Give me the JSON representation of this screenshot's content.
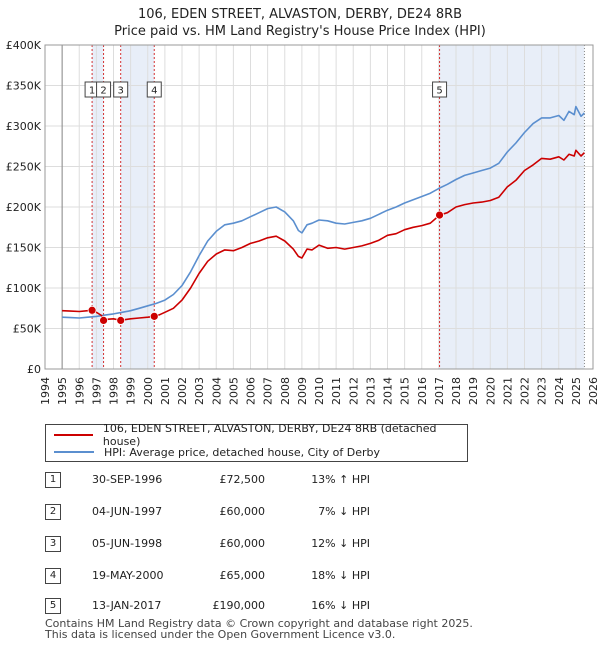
{
  "title": {
    "line1": "106, EDEN STREET, ALVASTON, DERBY, DE24 8RB",
    "line2": "Price paid vs. HM Land Registry's House Price Index (HPI)"
  },
  "chart_data": {
    "type": "line",
    "title": "106, EDEN STREET, ALVASTON, DERBY, DE24 8RB — Price paid vs. HM Land Registry's House Price Index (HPI)",
    "xlabel": "",
    "ylabel": "",
    "xlim": [
      1994,
      2026
    ],
    "ylim": [
      0,
      400000
    ],
    "grid": true,
    "x_ticks": [
      1994,
      1995,
      1996,
      1997,
      1998,
      1999,
      2000,
      2001,
      2002,
      2003,
      2004,
      2005,
      2006,
      2007,
      2008,
      2009,
      2010,
      2011,
      2012,
      2013,
      2014,
      2015,
      2016,
      2017,
      2018,
      2019,
      2020,
      2021,
      2022,
      2023,
      2024,
      2025,
      2026
    ],
    "y_ticks": [
      {
        "value": 0,
        "label": "£0"
      },
      {
        "value": 50000,
        "label": "£50K"
      },
      {
        "value": 100000,
        "label": "£100K"
      },
      {
        "value": 150000,
        "label": "£150K"
      },
      {
        "value": 200000,
        "label": "£200K"
      },
      {
        "value": 250000,
        "label": "£250K"
      },
      {
        "value": 300000,
        "label": "£300K"
      },
      {
        "value": 350000,
        "label": "£350K"
      },
      {
        "value": 400000,
        "label": "£400K"
      }
    ],
    "data_start": 1995,
    "data_end": 2025.5,
    "series": [
      {
        "name": "106, EDEN STREET, ALVASTON, DERBY, DE24 8RB (detached house)",
        "color": "#cc0000",
        "x": [
          1995,
          1995.5,
          1996,
          1996.5,
          1996.75,
          1997,
          1997.3,
          1997.42,
          1997.7,
          1998,
          1998.42,
          1998.7,
          1999,
          1999.5,
          2000,
          2000.38,
          2000.7,
          2001,
          2001.5,
          2002,
          2002.5,
          2003,
          2003.5,
          2004,
          2004.5,
          2005,
          2005.5,
          2006,
          2006.5,
          2007,
          2007.5,
          2008,
          2008.5,
          2008.8,
          2009,
          2009.3,
          2009.6,
          2010,
          2010.5,
          2011,
          2011.5,
          2012,
          2012.5,
          2013,
          2013.5,
          2014,
          2014.5,
          2015,
          2015.5,
          2016,
          2016.5,
          2017.04,
          2017.5,
          2018,
          2018.5,
          2019,
          2019.5,
          2020,
          2020.5,
          2021,
          2021.5,
          2022,
          2022.5,
          2023,
          2023.5,
          2024,
          2024.3,
          2024.6,
          2024.9,
          2025,
          2025.3,
          2025.5
        ],
        "values": [
          72000,
          71500,
          71000,
          72000,
          72500,
          70000,
          66000,
          60000,
          61500,
          62000,
          60000,
          61000,
          62000,
          63000,
          64000,
          65000,
          67000,
          70000,
          75000,
          85000,
          100000,
          118000,
          133000,
          142000,
          147000,
          146000,
          150000,
          155000,
          158000,
          162000,
          164000,
          158000,
          148000,
          139000,
          137000,
          148000,
          147000,
          153000,
          149000,
          150000,
          148000,
          150000,
          152000,
          155000,
          159000,
          165000,
          167000,
          172000,
          175000,
          177000,
          180000,
          190000,
          193000,
          200000,
          203000,
          205000,
          206000,
          208000,
          212000,
          225000,
          233000,
          245000,
          252000,
          260000,
          259000,
          262000,
          258000,
          265000,
          263000,
          270000,
          263000,
          267000
        ]
      },
      {
        "name": "HPI: Average price, detached house, City of Derby",
        "color": "#5b8fcf",
        "x": [
          1995,
          1995.5,
          1996,
          1996.5,
          1997,
          1997.5,
          1998,
          1998.5,
          1999,
          1999.5,
          2000,
          2000.5,
          2001,
          2001.5,
          2002,
          2002.5,
          2003,
          2003.5,
          2004,
          2004.5,
          2005,
          2005.5,
          2006,
          2006.5,
          2007,
          2007.5,
          2008,
          2008.5,
          2008.8,
          2009,
          2009.3,
          2009.6,
          2010,
          2010.5,
          2011,
          2011.5,
          2012,
          2012.5,
          2013,
          2013.5,
          2014,
          2014.5,
          2015,
          2015.5,
          2016,
          2016.5,
          2017,
          2017.5,
          2018,
          2018.5,
          2019,
          2019.5,
          2020,
          2020.5,
          2021,
          2021.5,
          2022,
          2022.5,
          2023,
          2023.5,
          2024,
          2024.3,
          2024.6,
          2024.9,
          2025,
          2025.3,
          2025.5
        ],
        "values": [
          64000,
          63500,
          63000,
          64000,
          65000,
          66500,
          68000,
          70000,
          72000,
          75000,
          78000,
          81000,
          85000,
          92000,
          103000,
          120000,
          140000,
          158000,
          170000,
          178000,
          180000,
          183000,
          188000,
          193000,
          198000,
          200000,
          194000,
          183000,
          171000,
          168000,
          178000,
          180000,
          184000,
          183000,
          180000,
          179000,
          181000,
          183000,
          186000,
          191000,
          196000,
          200000,
          205000,
          209000,
          213000,
          217000,
          223000,
          228000,
          234000,
          239000,
          242000,
          245000,
          248000,
          254000,
          268000,
          279000,
          292000,
          303000,
          310000,
          310000,
          313000,
          307000,
          318000,
          314000,
          324000,
          312000,
          316000
        ]
      }
    ],
    "transactions": [
      {
        "id": "1",
        "date": "30-SEP-1996",
        "x": 1996.75,
        "price_value": 72500,
        "price": "£72,500",
        "hpi_change": "13% ↑ HPI"
      },
      {
        "id": "2",
        "date": "04-JUN-1997",
        "x": 1997.42,
        "price_value": 60000,
        "price": "£60,000",
        "hpi_change": "7% ↓ HPI"
      },
      {
        "id": "3",
        "date": "05-JUN-1998",
        "x": 1998.42,
        "price_value": 60000,
        "price": "£60,000",
        "hpi_change": "12% ↓ HPI"
      },
      {
        "id": "4",
        "date": "19-MAY-2000",
        "x": 2000.38,
        "price_value": 65000,
        "price": "£65,000",
        "hpi_change": "18% ↓ HPI"
      },
      {
        "id": "5",
        "date": "13-JAN-2017",
        "x": 2017.04,
        "price_value": 190000,
        "price": "£190,000",
        "hpi_change": "16% ↓ HPI"
      }
    ],
    "shaded_periods": [
      [
        1996.75,
        1997.42
      ],
      [
        1998.42,
        2000.38
      ],
      [
        2017.04,
        2025.5
      ]
    ]
  },
  "legend": {
    "property_label": "106, EDEN STREET, ALVASTON, DERBY, DE24 8RB (detached house)",
    "hpi_label": "HPI: Average price, detached house, City of Derby",
    "property_color": "#cc0000",
    "hpi_color": "#5b8fcf"
  },
  "footer": {
    "line1": "Contains HM Land Registry data © Crown copyright and database right 2025.",
    "line2": "This data is licensed under the Open Government Licence v3.0."
  }
}
